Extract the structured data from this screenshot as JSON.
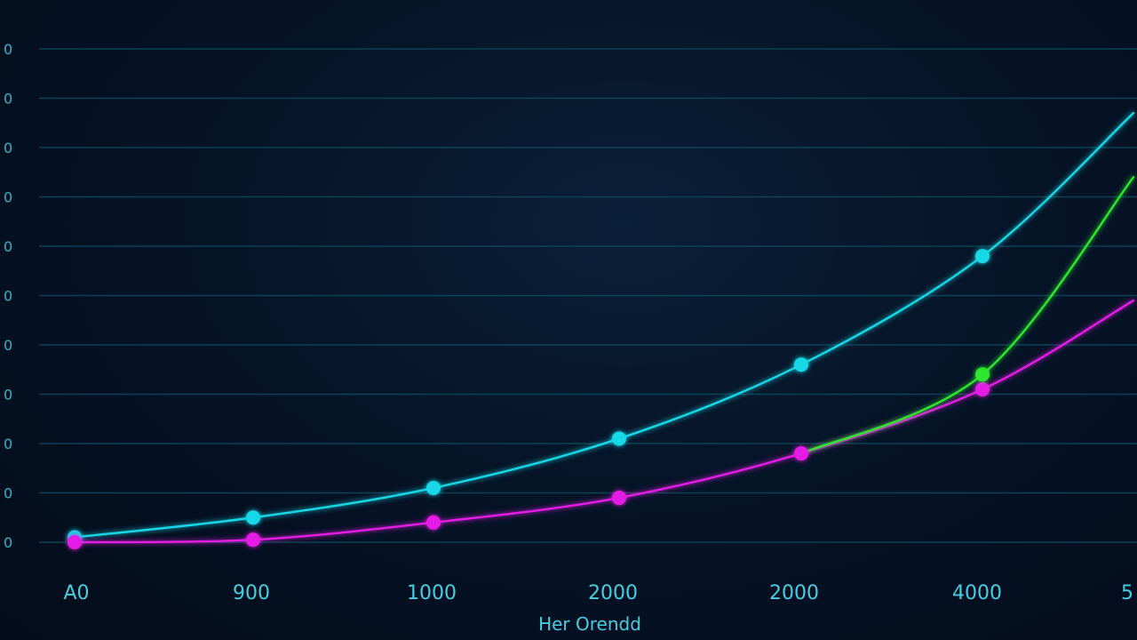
{
  "chart_data": {
    "type": "line",
    "title": "",
    "xlabel": "Her Orendd",
    "ylabel": "",
    "x_tick_labels": [
      "A0",
      "900",
      "1000",
      "2000",
      "2000",
      "4000",
      "5"
    ],
    "y_tick_labels": [
      "0",
      "0",
      "0",
      "0",
      "0",
      "0",
      "0",
      "0",
      "0",
      "0",
      "0"
    ],
    "ylim": [
      0,
      10
    ],
    "grid": true,
    "legend": "none",
    "series": [
      {
        "color": "#19d8e6",
        "values": [
          0.1,
          0.5,
          1.1,
          2.1,
          3.6,
          5.8,
          8.7
        ]
      },
      {
        "color": "#e61ee6",
        "values": [
          0.0,
          0.05,
          0.4,
          0.9,
          1.8,
          3.1,
          4.9
        ]
      },
      {
        "color": "#2ee62e",
        "values": [
          null,
          null,
          null,
          null,
          1.8,
          3.4,
          7.4
        ]
      }
    ]
  }
}
